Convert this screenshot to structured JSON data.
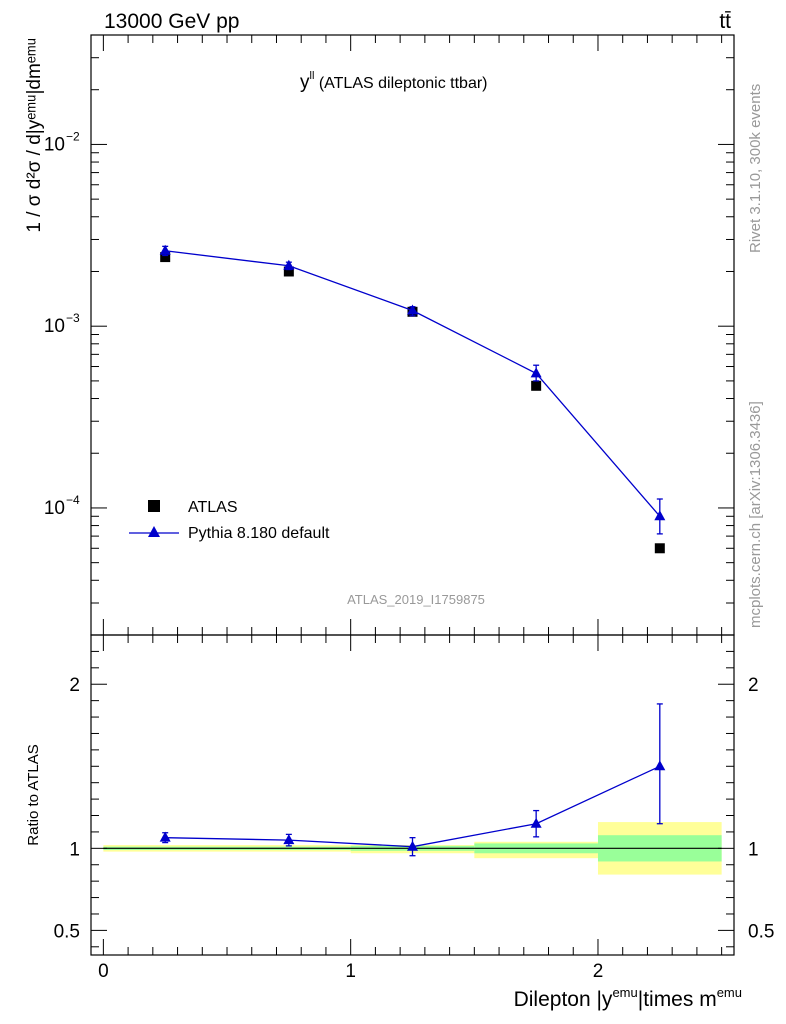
{
  "header": {
    "energy_label": "13000 GeV pp",
    "process_label": "tt̄"
  },
  "side_text": {
    "rivet": "Rivet 3.1.10,  300k events",
    "source": "mcplots.cern.ch [arXiv:1306.3436]"
  },
  "chart_data": [
    {
      "type": "scatter",
      "title": "y",
      "title_sup": "ll",
      "title_rest": " (ATLAS dileptonic ttbar)",
      "analysis_tag": "ATLAS_2019_I1759875",
      "ylabel": "1 / σ  d²σ / d|yᵉᵐᵘ|dmᵉᵐᵘ",
      "yscale": "log",
      "ylim": [
        2e-05,
        0.04
      ],
      "xlim": [
        -0.05,
        2.55
      ],
      "y_ticks": [
        {
          "value": 0.0001,
          "label": "10",
          "exp": "−4"
        },
        {
          "value": 0.001,
          "label": "10",
          "exp": "−3"
        },
        {
          "value": 0.01,
          "label": "10",
          "exp": "−2"
        }
      ],
      "legend": {
        "placement": "bottom-left",
        "entries": [
          {
            "name": "ATLAS",
            "marker": "square",
            "color": "#000000"
          },
          {
            "name": "Pythia 8.180 default",
            "marker": "triangle",
            "color": "#0000cc"
          }
        ]
      },
      "series": [
        {
          "name": "ATLAS",
          "x": [
            0.25,
            0.75,
            1.25,
            1.75,
            2.25
          ],
          "y": [
            0.0024,
            0.002,
            0.0012,
            0.00047,
            6e-05
          ]
        },
        {
          "name": "Pythia 8.180 default",
          "x": [
            0.25,
            0.75,
            1.25,
            1.75,
            2.25
          ],
          "y": [
            0.0026,
            0.00215,
            0.00122,
            0.00055,
            9e-05
          ],
          "yerr_low": [
            0.00245,
            0.00205,
            0.00114,
            0.0005,
            7.2e-05
          ],
          "yerr_high": [
            0.00275,
            0.00225,
            0.00128,
            0.00061,
            0.000112
          ]
        }
      ]
    },
    {
      "type": "scatter",
      "ylabel": "Ratio to ATLAS",
      "xlabel": "Dilepton |y",
      "xlabel_sup1": "emu",
      "xlabel_mid": "|times m",
      "xlabel_sup2": "emu",
      "ylim": [
        0.35,
        2.3
      ],
      "xlim": [
        -0.05,
        2.55
      ],
      "x_ticks": [
        0,
        1,
        2
      ],
      "x_tick_labels": [
        "0",
        "1",
        "2"
      ],
      "y_ticks": [
        0.5,
        1,
        2
      ],
      "y_tick_labels": [
        "0.5",
        "1",
        "2"
      ],
      "bands": [
        {
          "x0": 0.0,
          "x1": 0.5,
          "inner": [
            0.99,
            1.01
          ],
          "outer": [
            0.98,
            1.02
          ]
        },
        {
          "x0": 0.5,
          "x1": 1.0,
          "inner": [
            0.99,
            1.01
          ],
          "outer": [
            0.98,
            1.02
          ]
        },
        {
          "x0": 1.0,
          "x1": 1.5,
          "inner": [
            0.985,
            1.015
          ],
          "outer": [
            0.97,
            1.02
          ]
        },
        {
          "x0": 1.5,
          "x1": 2.0,
          "inner": [
            0.97,
            1.03
          ],
          "outer": [
            0.94,
            1.04
          ]
        },
        {
          "x0": 2.0,
          "x1": 2.5,
          "inner": [
            0.92,
            1.08
          ],
          "outer": [
            0.84,
            1.16
          ]
        }
      ],
      "band_colors": {
        "inner": "#99ff99",
        "outer": "#ffff99"
      },
      "series": [
        {
          "name": "Pythia 8.180 default",
          "x": [
            0.25,
            0.75,
            1.25,
            1.75,
            2.25
          ],
          "y": [
            1.065,
            1.05,
            1.01,
            1.15,
            1.5
          ],
          "yerr_low": [
            1.035,
            1.015,
            0.955,
            1.07,
            1.15
          ],
          "yerr_high": [
            1.095,
            1.085,
            1.065,
            1.23,
            1.88
          ]
        }
      ]
    }
  ]
}
